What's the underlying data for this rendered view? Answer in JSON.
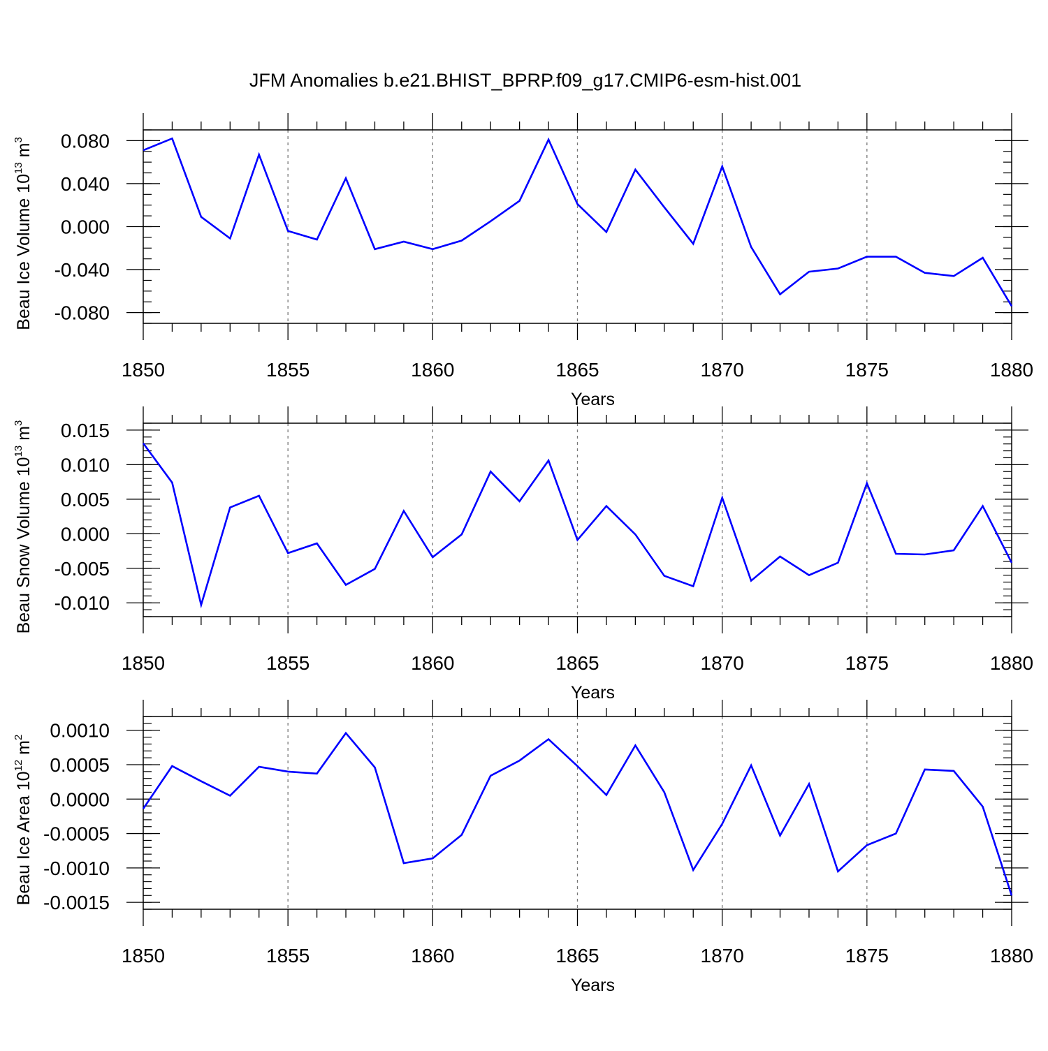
{
  "title": "JFM Anomalies b.e21.BHIST_BPRP.f09_g17.CMIP6-esm-hist.001",
  "colors": {
    "line": "#0000ff",
    "axis": "#000000",
    "grid": "#777777"
  },
  "chart_data": [
    {
      "type": "line",
      "xlabel": "Years",
      "ylabel": {
        "text": "Beau Ice Volume 10",
        "exponent": "13",
        "unit": " m",
        "unit_exponent": "3"
      },
      "xlim": [
        1850,
        1880
      ],
      "ylim": [
        -0.09,
        0.09
      ],
      "x_ticks": [
        1850,
        1855,
        1860,
        1865,
        1870,
        1875,
        1880
      ],
      "x_tick_labels": [
        "1850",
        "1855",
        "1860",
        "1865",
        "1870",
        "1875",
        "1880"
      ],
      "y_ticks": [
        -0.08,
        -0.04,
        0.0,
        0.04,
        0.08
      ],
      "y_tick_labels": [
        "-0.080",
        "-0.040",
        "0.000",
        "0.040",
        "0.080"
      ],
      "y_minor_step": 0.01,
      "grid": "vertical dashed at major x ticks",
      "x": [
        1850,
        1851,
        1852,
        1853,
        1854,
        1855,
        1856,
        1857,
        1858,
        1859,
        1860,
        1861,
        1862,
        1863,
        1864,
        1865,
        1866,
        1867,
        1868,
        1869,
        1870,
        1871,
        1872,
        1873,
        1874,
        1875,
        1876,
        1877,
        1878,
        1879,
        1880
      ],
      "values": [
        0.071,
        0.082,
        0.009,
        -0.011,
        0.067,
        -0.004,
        -0.012,
        0.045,
        -0.021,
        -0.014,
        -0.021,
        -0.013,
        0.005,
        0.024,
        0.081,
        0.021,
        -0.005,
        0.053,
        0.018,
        -0.016,
        0.056,
        -0.019,
        -0.063,
        -0.042,
        -0.039,
        -0.028,
        -0.028,
        -0.043,
        -0.046,
        -0.029,
        -0.074
      ]
    },
    {
      "type": "line",
      "xlabel": "Years",
      "ylabel": {
        "text": "Beau Snow Volume 10",
        "exponent": "13",
        "unit": " m",
        "unit_exponent": "3"
      },
      "xlim": [
        1850,
        1880
      ],
      "ylim": [
        -0.012,
        0.016
      ],
      "x_ticks": [
        1850,
        1855,
        1860,
        1865,
        1870,
        1875,
        1880
      ],
      "x_tick_labels": [
        "1850",
        "1855",
        "1860",
        "1865",
        "1870",
        "1875",
        "1880"
      ],
      "y_ticks": [
        -0.01,
        -0.005,
        0.0,
        0.005,
        0.01,
        0.015
      ],
      "y_tick_labels": [
        "-0.010",
        "-0.005",
        "0.000",
        "0.005",
        "0.010",
        "0.015"
      ],
      "y_minor_step": 0.001,
      "grid": "vertical dashed at major x ticks",
      "x": [
        1850,
        1851,
        1852,
        1853,
        1854,
        1855,
        1856,
        1857,
        1858,
        1859,
        1860,
        1861,
        1862,
        1863,
        1864,
        1865,
        1866,
        1867,
        1868,
        1869,
        1870,
        1871,
        1872,
        1873,
        1874,
        1875,
        1876,
        1877,
        1878,
        1879,
        1880
      ],
      "values": [
        0.0131,
        0.0074,
        -0.0103,
        0.0038,
        0.0055,
        -0.0028,
        -0.0014,
        -0.0074,
        -0.0051,
        0.0033,
        -0.0034,
        -0.0001,
        0.009,
        0.0047,
        0.0106,
        -0.0009,
        0.004,
        -0.0001,
        -0.0061,
        -0.0076,
        0.0052,
        -0.0068,
        -0.0033,
        -0.006,
        -0.0042,
        0.0073,
        -0.0029,
        -0.003,
        -0.0024,
        0.004,
        -0.0042
      ]
    },
    {
      "type": "line",
      "xlabel": "Years",
      "ylabel": {
        "text": "Beau Ice Area 10",
        "exponent": "12",
        "unit": " m",
        "unit_exponent": "2"
      },
      "xlim": [
        1850,
        1880
      ],
      "ylim": [
        -0.0016,
        0.0012
      ],
      "x_ticks": [
        1850,
        1855,
        1860,
        1865,
        1870,
        1875,
        1880
      ],
      "x_tick_labels": [
        "1850",
        "1855",
        "1860",
        "1865",
        "1870",
        "1875",
        "1880"
      ],
      "y_ticks": [
        -0.0015,
        -0.001,
        -0.0005,
        0.0,
        0.0005,
        0.001
      ],
      "y_tick_labels": [
        "-0.0015",
        "-0.0010",
        "-0.0005",
        "0.0000",
        "0.0005",
        "0.0010"
      ],
      "y_minor_step": 0.0001,
      "grid": "vertical dashed at major x ticks",
      "x": [
        1850,
        1851,
        1852,
        1853,
        1854,
        1855,
        1856,
        1857,
        1858,
        1859,
        1860,
        1861,
        1862,
        1863,
        1864,
        1865,
        1866,
        1867,
        1868,
        1869,
        1870,
        1871,
        1872,
        1873,
        1874,
        1875,
        1876,
        1877,
        1878,
        1879,
        1880
      ],
      "values": [
        -0.00014,
        0.00048,
        0.00026,
        5e-05,
        0.00047,
        0.0004,
        0.00037,
        0.00096,
        0.00046,
        -0.00093,
        -0.00086,
        -0.00052,
        0.00034,
        0.00056,
        0.00087,
        0.00048,
        6e-05,
        0.00078,
        0.0001,
        -0.00103,
        -0.00036,
        0.00049,
        -0.00053,
        0.00022,
        -0.00105,
        -0.00067,
        -0.0005,
        0.00043,
        0.00041,
        -0.00011,
        -0.0014
      ]
    }
  ]
}
